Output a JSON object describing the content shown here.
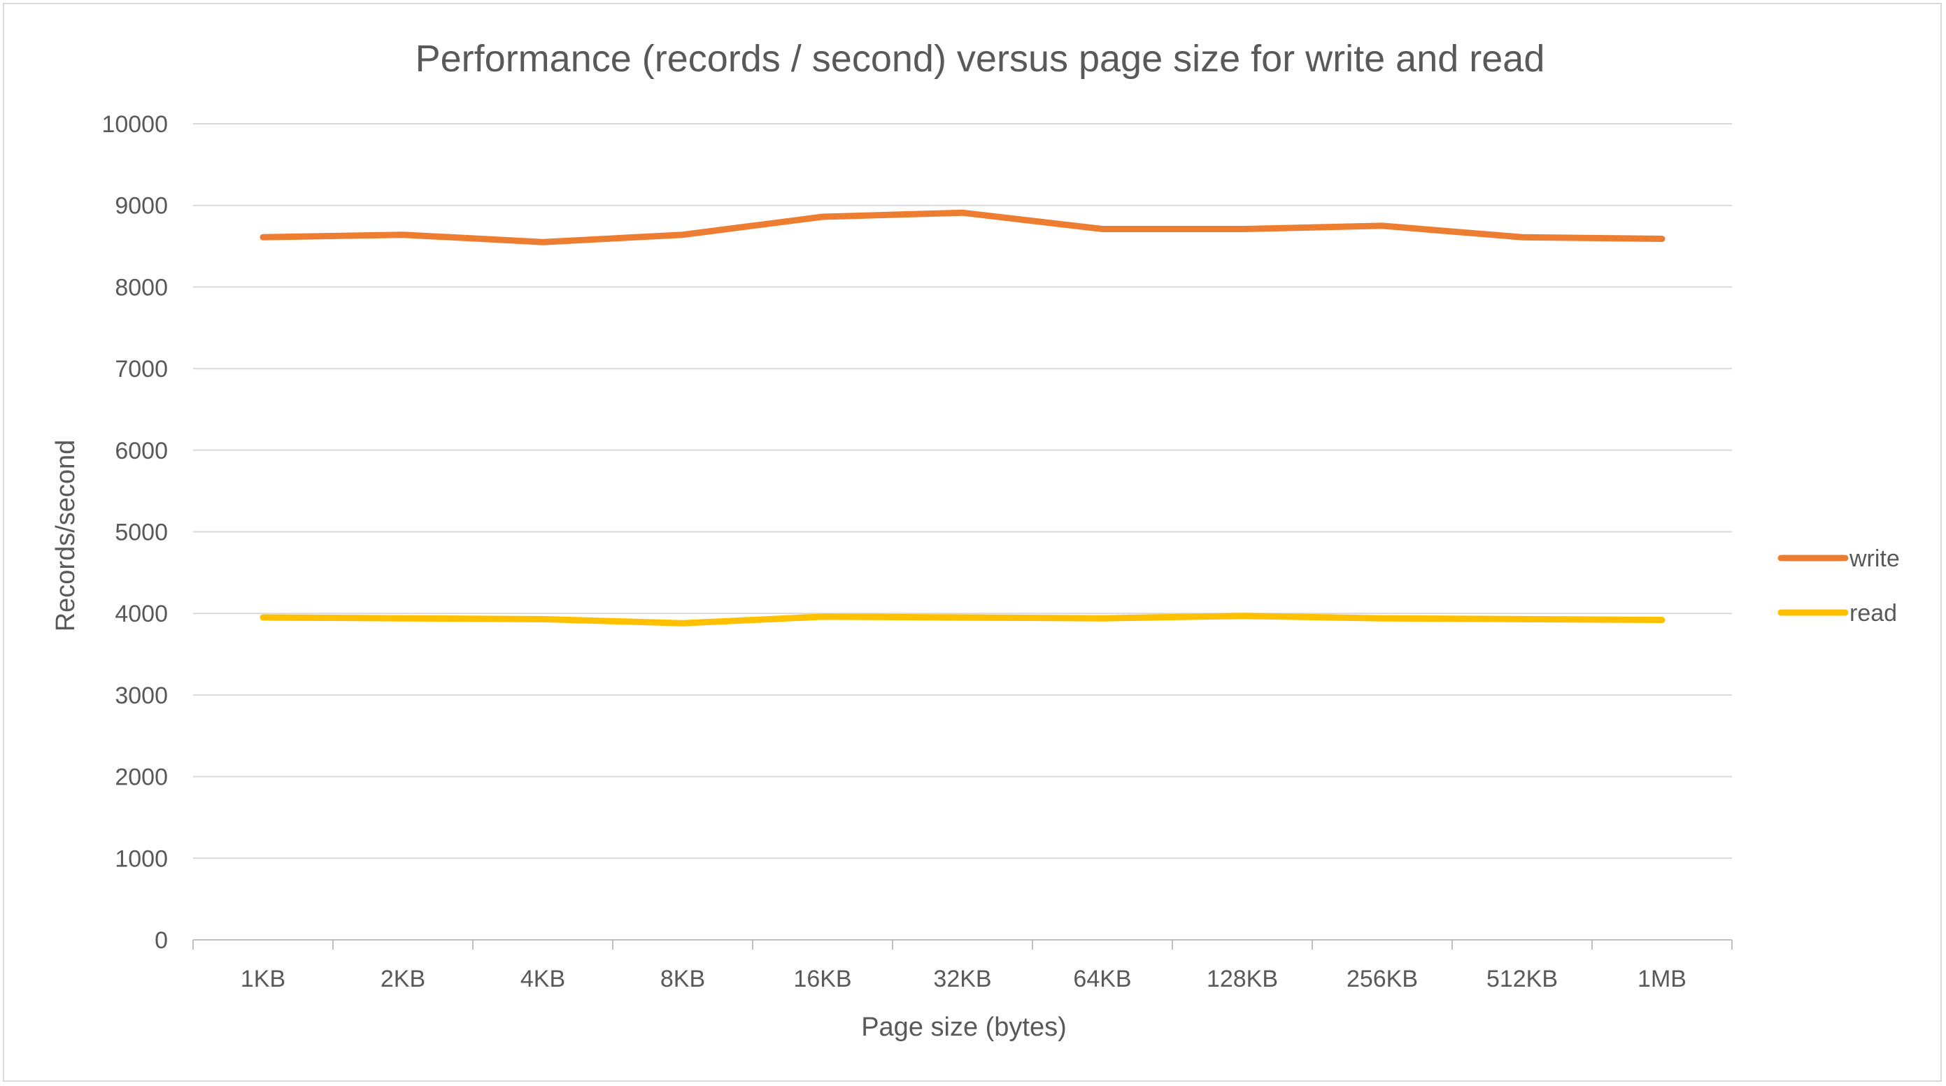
{
  "chart_data": {
    "type": "line",
    "title": "Performance (records / second) versus page size for write and read",
    "xlabel": "Page size (bytes)",
    "ylabel": "Records/second",
    "categories": [
      "1KB",
      "2KB",
      "4KB",
      "8KB",
      "16KB",
      "32KB",
      "64KB",
      "128KB",
      "256KB",
      "512KB",
      "1MB"
    ],
    "ylim": [
      0,
      10000
    ],
    "yticks": [
      "0",
      "1000",
      "2000",
      "3000",
      "4000",
      "5000",
      "6000",
      "7000",
      "8000",
      "9000",
      "10000"
    ],
    "grid": true,
    "legend_position": "right",
    "series": [
      {
        "name": "write",
        "color": "#ED7D31",
        "values": [
          8610,
          8640,
          8550,
          8640,
          8860,
          8910,
          8710,
          8710,
          8750,
          8610,
          8590
        ]
      },
      {
        "name": "read",
        "color": "#FFC000",
        "values": [
          3950,
          3940,
          3930,
          3880,
          3960,
          3950,
          3940,
          3970,
          3940,
          3930,
          3920
        ]
      }
    ]
  }
}
